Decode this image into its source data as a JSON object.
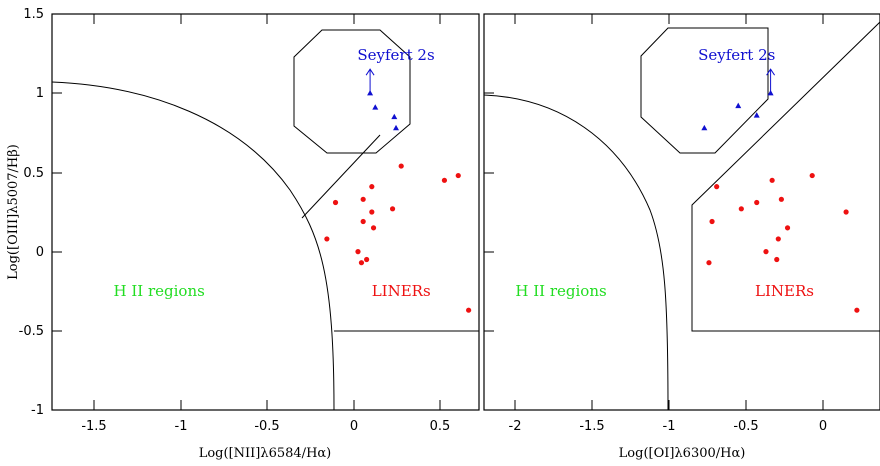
{
  "chart_data": [
    {
      "type": "scatter",
      "xlabel": "Log([NII]λ6584/Hα)",
      "ylabel": "Log([OIII]λ5007/Hβ)",
      "xlim": [
        -1.72,
        0.75
      ],
      "ylim": [
        -1,
        1.5
      ],
      "xticks": [
        "-1.5",
        "-1",
        "-0.5",
        "0",
        "0.5"
      ],
      "yticks": [
        "-1",
        "-0.5",
        "0",
        "0.5",
        "1",
        "1.5"
      ],
      "region_labels": [
        {
          "text": "Seyfert 2s",
          "x": 0.27,
          "y": 1.24,
          "color": "#1010d0"
        },
        {
          "text": "H II regions",
          "x": -1.1,
          "y": -0.25,
          "color": "#22dd22"
        },
        {
          "text": "LINERs",
          "x": 0.3,
          "y": -0.25,
          "color": "#ee1111"
        }
      ],
      "series": [
        {
          "marker": "triangle",
          "color": "#1010d0",
          "points": [
            [
              0.15,
              0.91
            ],
            [
              0.26,
              0.85
            ],
            [
              0.27,
              0.78
            ]
          ],
          "arrows": [
            [
              0.12,
              1.0
            ]
          ]
        },
        {
          "marker": "circle",
          "color": "#ee1111",
          "points": [
            [
              -0.08,
              0.31
            ],
            [
              -0.13,
              0.08
            ],
            [
              0.08,
              0.33
            ],
            [
              0.13,
              0.41
            ],
            [
              0.3,
              0.54
            ],
            [
              0.08,
              0.19
            ],
            [
              0.13,
              0.25
            ],
            [
              0.14,
              0.15
            ],
            [
              0.25,
              0.27
            ],
            [
              0.55,
              0.45
            ],
            [
              0.63,
              0.48
            ],
            [
              0.05,
              0.0
            ],
            [
              0.07,
              -0.07
            ],
            [
              0.1,
              -0.05
            ],
            [
              0.69,
              -0.37
            ]
          ]
        }
      ]
    },
    {
      "type": "scatter",
      "xlabel": "Log([OI]λ6300/Hα)",
      "ylabel": "",
      "xlim": [
        -2.22,
        0.35
      ],
      "ylim": [
        -1,
        1.5
      ],
      "xticks": [
        "-2",
        "-1.5",
        "-1",
        "-0.5",
        "0"
      ],
      "yticks": [],
      "region_labels": [
        {
          "text": "Seyfert 2s",
          "x": -0.58,
          "y": 1.24,
          "color": "#1010d0"
        },
        {
          "text": "H II regions",
          "x": -1.72,
          "y": -0.25,
          "color": "#22dd22"
        },
        {
          "text": "LINERs",
          "x": -0.27,
          "y": -0.25,
          "color": "#ee1111"
        }
      ],
      "series": [
        {
          "marker": "triangle",
          "color": "#1010d0",
          "points": [
            [
              -0.79,
              0.78
            ],
            [
              -0.57,
              0.92
            ],
            [
              -0.45,
              0.86
            ]
          ],
          "arrows": [
            [
              -0.36,
              1.0
            ]
          ]
        },
        {
          "marker": "circle",
          "color": "#ee1111",
          "points": [
            [
              -0.71,
              0.41
            ],
            [
              -0.35,
              0.45
            ],
            [
              -0.09,
              0.48
            ],
            [
              -0.55,
              0.27
            ],
            [
              -0.45,
              0.31
            ],
            [
              -0.29,
              0.33
            ],
            [
              -0.74,
              0.19
            ],
            [
              -0.25,
              0.15
            ],
            [
              -0.31,
              0.08
            ],
            [
              0.13,
              0.25
            ],
            [
              -0.39,
              0.0
            ],
            [
              -0.76,
              -0.07
            ],
            [
              -0.32,
              -0.05
            ],
            [
              0.2,
              -0.37
            ]
          ]
        }
      ]
    }
  ]
}
